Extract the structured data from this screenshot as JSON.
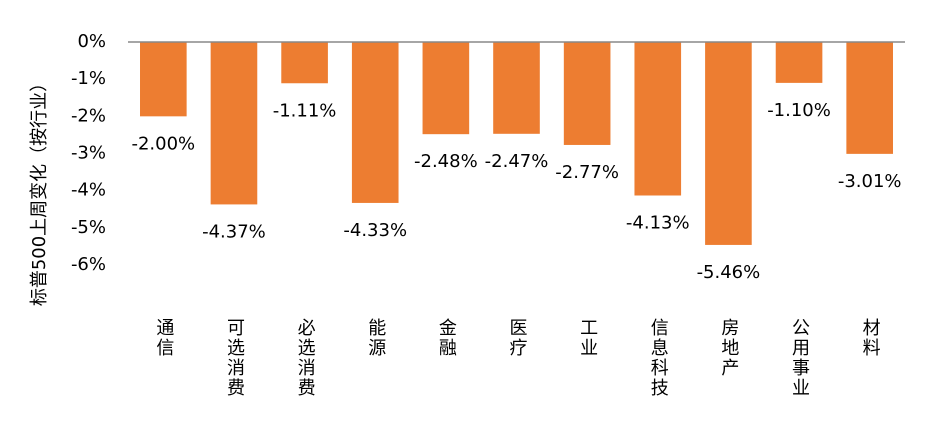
{
  "chart_data": {
    "type": "bar",
    "y_label": "标普500上周变化（按行业）",
    "categories": [
      "通信",
      "可选消费",
      "必选消费",
      "能源",
      "金融",
      "医疗",
      "工业",
      "信息科技",
      "房地产",
      "公用事业",
      "材料"
    ],
    "values": [
      -2.0,
      -4.37,
      -1.11,
      -4.33,
      -2.48,
      -2.47,
      -2.77,
      -4.13,
      -5.46,
      -1.1,
      -3.01
    ],
    "value_labels": [
      "-2.00%",
      "-4.37%",
      "-1.11%",
      "-4.33%",
      "-2.48%",
      "-2.47%",
      "-2.77%",
      "-4.13%",
      "-5.46%",
      "-1.10%",
      "-3.01%"
    ],
    "color": "#ED7D31",
    "ylim": [
      -6,
      0
    ],
    "yticks": [
      {
        "value": 0,
        "label": "0%"
      },
      {
        "value": -1,
        "label": "-1%"
      },
      {
        "value": -2,
        "label": "-2%"
      },
      {
        "value": -3,
        "label": "-3%"
      },
      {
        "value": -4,
        "label": "-4%"
      },
      {
        "value": -5,
        "label": "-5%"
      },
      {
        "value": -6,
        "label": "-6%"
      }
    ]
  }
}
